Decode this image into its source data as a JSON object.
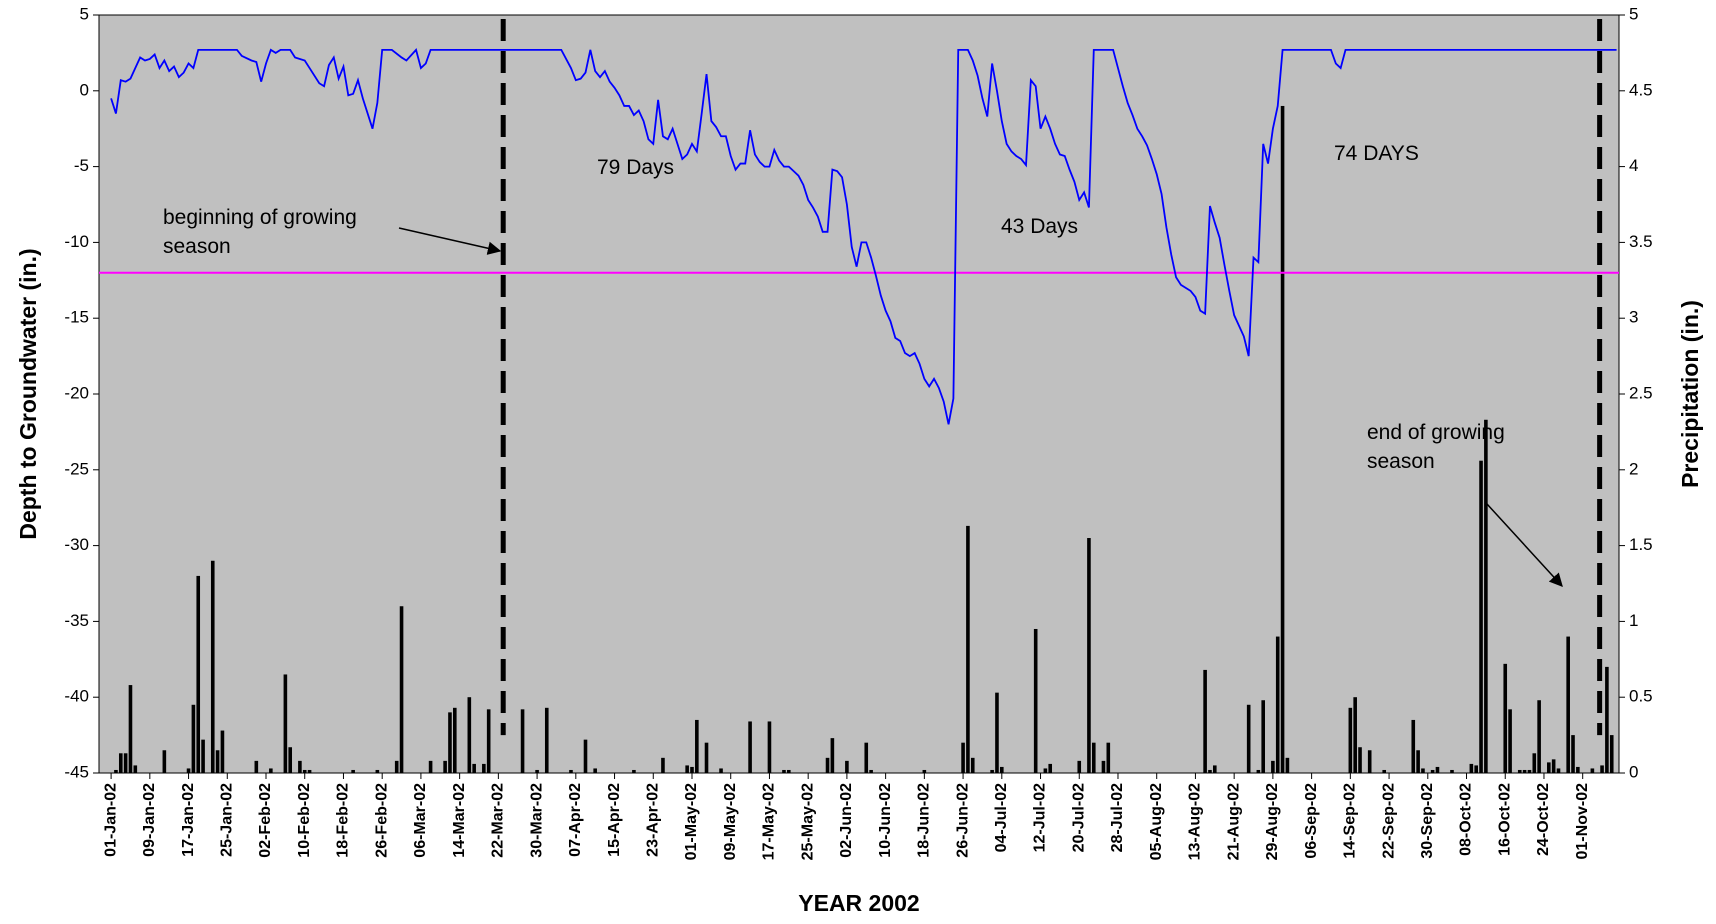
{
  "chart_data": {
    "type": "combo",
    "x_title": "YEAR 2002",
    "y_title": "Depth to Groundwater (in.)",
    "y2_title": "Precipitation (in.)",
    "xlim": [
      -1.5,
      312.5
    ],
    "ylim": [
      -45,
      5
    ],
    "y2lim": [
      0,
      5
    ],
    "yticks": [
      -45,
      -40,
      -35,
      -30,
      -25,
      -20,
      -15,
      -10,
      -5,
      0,
      5
    ],
    "y2ticks": [
      0,
      0.5,
      1,
      1.5,
      2,
      2.5,
      3,
      3.5,
      4,
      4.5,
      5
    ],
    "xticks": [
      {
        "value": 1,
        "label": "01-Jan-02"
      },
      {
        "value": 9,
        "label": "09-Jan-02"
      },
      {
        "value": 17,
        "label": "17-Jan-02"
      },
      {
        "value": 25,
        "label": "25-Jan-02"
      },
      {
        "value": 33,
        "label": "02-Feb-02"
      },
      {
        "value": 41,
        "label": "10-Feb-02"
      },
      {
        "value": 49,
        "label": "18-Feb-02"
      },
      {
        "value": 57,
        "label": "26-Feb-02"
      },
      {
        "value": 65,
        "label": "06-Mar-02"
      },
      {
        "value": 73,
        "label": "14-Mar-02"
      },
      {
        "value": 81,
        "label": "22-Mar-02"
      },
      {
        "value": 89,
        "label": "30-Mar-02"
      },
      {
        "value": 97,
        "label": "07-Apr-02"
      },
      {
        "value": 105,
        "label": "15-Apr-02"
      },
      {
        "value": 113,
        "label": "23-Apr-02"
      },
      {
        "value": 121,
        "label": "01-May-02"
      },
      {
        "value": 129,
        "label": "09-May-02"
      },
      {
        "value": 137,
        "label": "17-May-02"
      },
      {
        "value": 145,
        "label": "25-May-02"
      },
      {
        "value": 153,
        "label": "02-Jun-02"
      },
      {
        "value": 161,
        "label": "10-Jun-02"
      },
      {
        "value": 169,
        "label": "18-Jun-02"
      },
      {
        "value": 177,
        "label": "26-Jun-02"
      },
      {
        "value": 185,
        "label": "04-Jul-02"
      },
      {
        "value": 193,
        "label": "12-Jul-02"
      },
      {
        "value": 201,
        "label": "20-Jul-02"
      },
      {
        "value": 209,
        "label": "28-Jul-02"
      },
      {
        "value": 217,
        "label": "05-Aug-02"
      },
      {
        "value": 225,
        "label": "13-Aug-02"
      },
      {
        "value": 233,
        "label": "21-Aug-02"
      },
      {
        "value": 241,
        "label": "29-Aug-02"
      },
      {
        "value": 249,
        "label": "06-Sep-02"
      },
      {
        "value": 257,
        "label": "14-Sep-02"
      },
      {
        "value": 265,
        "label": "22-Sep-02"
      },
      {
        "value": 273,
        "label": "30-Sep-02"
      },
      {
        "value": 281,
        "label": "08-Oct-02"
      },
      {
        "value": 289,
        "label": "16-Oct-02"
      },
      {
        "value": 297,
        "label": "24-Oct-02"
      },
      {
        "value": 305,
        "label": "01-Nov-02"
      }
    ],
    "threshold": -12,
    "threshold_color": "#ff00ff",
    "season_lines": [
      82,
      308.5
    ],
    "annotations": [
      "79 Days",
      "43 Days",
      "74 DAYS",
      "beginning of growing season",
      "end of growing season"
    ],
    "series": [
      {
        "type": "line",
        "axis": "y",
        "color": "#0000ff",
        "x": [
          1,
          2,
          3,
          4,
          5,
          6,
          7,
          8,
          9,
          10,
          11,
          12,
          13,
          14,
          15,
          16,
          17,
          18,
          19,
          27,
          28,
          30,
          31,
          32,
          33,
          34,
          35,
          36,
          38,
          39,
          41,
          42,
          44,
          45,
          46,
          47,
          48,
          49,
          50,
          51,
          52,
          53,
          55,
          56,
          57,
          59,
          61,
          62,
          64,
          65,
          66,
          67,
          94,
          96,
          97,
          98,
          99,
          100,
          101,
          102,
          103,
          104,
          105,
          106,
          107,
          108,
          109,
          110,
          111,
          112,
          113,
          114,
          115,
          116,
          117,
          118,
          119,
          120,
          121,
          122,
          123,
          124,
          125,
          126,
          127,
          128,
          129,
          130,
          131,
          132,
          133,
          134,
          135,
          136,
          137,
          138,
          139,
          140,
          141,
          142,
          143,
          144,
          145,
          146,
          147,
          148,
          149,
          150,
          151,
          152,
          153,
          154,
          155,
          156,
          157,
          158,
          159,
          160,
          161,
          162,
          163,
          164,
          165,
          166,
          167,
          168,
          169,
          170,
          171,
          172,
          173,
          174,
          175,
          176,
          178,
          179,
          180,
          181,
          182,
          183,
          184,
          185,
          186,
          187,
          188,
          189,
          190,
          191,
          192,
          193,
          194,
          195,
          196,
          197,
          198,
          199,
          200,
          201,
          202,
          203,
          204,
          208,
          209,
          210,
          211,
          212,
          213,
          214,
          215,
          216,
          217,
          218,
          219,
          220,
          221,
          222,
          223,
          224,
          225,
          226,
          227,
          228,
          229,
          230,
          231,
          232,
          233,
          234,
          235,
          236,
          237,
          238,
          239,
          240,
          241,
          242,
          243,
          253,
          254,
          255,
          256,
          312
        ],
        "values": [
          -0.5,
          -1.5,
          0.7,
          0.6,
          0.8,
          1.5,
          2.2,
          2.0,
          2.1,
          2.4,
          1.5,
          2.0,
          1.3,
          1.6,
          0.9,
          1.2,
          1.8,
          1.5,
          2.7,
          2.7,
          2.3,
          2.0,
          1.9,
          0.6,
          1.8,
          2.7,
          2.5,
          2.7,
          2.7,
          2.2,
          2.0,
          1.5,
          0.5,
          0.3,
          1.7,
          2.2,
          0.8,
          1.6,
          -0.3,
          -0.2,
          0.7,
          -0.5,
          -2.5,
          -0.8,
          2.7,
          2.7,
          2.2,
          2.0,
          2.7,
          1.5,
          1.8,
          2.7,
          2.7,
          1.5,
          0.7,
          0.8,
          1.2,
          2.7,
          1.3,
          0.9,
          1.3,
          0.6,
          0.2,
          -0.3,
          -1.0,
          -1.0,
          -1.6,
          -1.3,
          -2.0,
          -3.2,
          -3.5,
          -0.6,
          -3.0,
          -3.2,
          -2.5,
          -3.5,
          -4.5,
          -4.2,
          -3.5,
          -4.0,
          -1.5,
          1.1,
          -2.0,
          -2.4,
          -3.0,
          -3.0,
          -4.3,
          -5.2,
          -4.8,
          -4.8,
          -2.6,
          -4.2,
          -4.7,
          -5.0,
          -5.0,
          -3.9,
          -4.6,
          -5.0,
          -5.0,
          -5.3,
          -5.6,
          -6.2,
          -7.2,
          -7.7,
          -8.3,
          -9.3,
          -9.3,
          -5.2,
          -5.3,
          -5.7,
          -7.5,
          -10.3,
          -11.6,
          -10.0,
          -10.0,
          -11.0,
          -12.2,
          -13.5,
          -14.5,
          -15.2,
          -16.3,
          -16.5,
          -17.3,
          -17.5,
          -17.3,
          -18.0,
          -19.0,
          -19.5,
          -19.0,
          -19.6,
          -20.5,
          -22.0,
          -20.3,
          2.7,
          2.7,
          2.0,
          1.0,
          -0.5,
          -1.7,
          1.8,
          0,
          -2.0,
          -3.5,
          -4.0,
          -4.3,
          -4.5,
          -4.9,
          0.7,
          0.3,
          -2.5,
          -1.7,
          -2.5,
          -3.5,
          -4.2,
          -4.3,
          -5.2,
          -6.0,
          -7.2,
          -6.7,
          -7.7,
          2.7,
          2.7,
          1.5,
          0.3,
          -0.8,
          -1.6,
          -2.5,
          -3.0,
          -3.6,
          -4.5,
          -5.5,
          -6.8,
          -9.0,
          -10.8,
          -12.3,
          -12.8,
          -13.0,
          -13.2,
          -13.6,
          -14.5,
          -14.7,
          -7.6,
          -8.7,
          -9.7,
          -11.5,
          -13.2,
          -14.8,
          -15.5,
          -16.2,
          -17.5,
          -11.0,
          -11.3,
          -3.5,
          -4.8,
          -2.5,
          -1.0,
          2.7,
          2.7,
          1.8,
          1.5,
          2.7,
          2.7
        ]
      },
      {
        "type": "bar",
        "axis": "y2",
        "color": "#000000",
        "x": [
          2,
          3,
          4,
          5,
          6,
          12,
          17,
          18,
          19,
          20,
          22,
          23,
          24,
          31,
          34,
          37,
          38,
          40,
          41,
          42,
          51,
          56,
          60,
          61,
          67,
          70,
          71,
          72,
          75,
          76,
          78,
          79,
          86,
          89,
          91,
          96,
          99,
          101,
          109,
          115,
          120,
          121,
          122,
          124,
          127,
          133,
          137,
          140,
          141,
          149,
          150,
          153,
          157,
          158,
          169,
          177,
          178,
          179,
          183,
          184,
          185,
          192,
          194,
          195,
          201,
          203,
          204,
          206,
          207,
          227,
          228,
          229,
          236,
          238,
          239,
          241,
          242,
          243,
          244,
          257,
          258,
          259,
          261,
          264,
          270,
          271,
          272,
          274,
          275,
          278,
          282,
          283,
          284,
          285,
          289,
          290,
          292,
          293,
          294,
          295,
          296,
          298,
          299,
          300,
          302,
          303,
          304,
          307,
          309,
          310,
          311
        ],
        "values": [
          0.02,
          0.13,
          0.13,
          0.58,
          0.05,
          0.15,
          0.03,
          0.45,
          1.3,
          0.22,
          1.4,
          0.15,
          0.28,
          0.08,
          0.03,
          0.65,
          0.17,
          0.08,
          0.02,
          0.02,
          0.02,
          0.02,
          0.08,
          1.1,
          0.08,
          0.08,
          0.4,
          0.43,
          0.5,
          0.06,
          0.06,
          0.42,
          0.42,
          0.02,
          0.43,
          0.02,
          0.22,
          0.03,
          0.02,
          0.1,
          0.05,
          0.04,
          0.35,
          0.2,
          0.03,
          0.34,
          0.34,
          0.02,
          0.02,
          0.1,
          0.23,
          0.08,
          0.2,
          0.02,
          0.02,
          0.2,
          1.63,
          0.1,
          0.02,
          0.53,
          0.04,
          0.95,
          0.03,
          0.06,
          0.08,
          1.55,
          0.2,
          0.08,
          0.2,
          0.68,
          0.02,
          0.05,
          0.45,
          0.02,
          0.48,
          0.08,
          0.9,
          4.4,
          0.1,
          0.43,
          0.5,
          0.17,
          0.15,
          0.02,
          0.35,
          0.15,
          0.03,
          0.02,
          0.04,
          0.02,
          0.06,
          0.05,
          2.06,
          2.33,
          0.72,
          0.42,
          0.02,
          0.02,
          0.02,
          0.13,
          0.48,
          0.07,
          0.09,
          0.03,
          0.9,
          0.25,
          0.04,
          0.03,
          0.05,
          0.7,
          0.25
        ]
      }
    ]
  }
}
